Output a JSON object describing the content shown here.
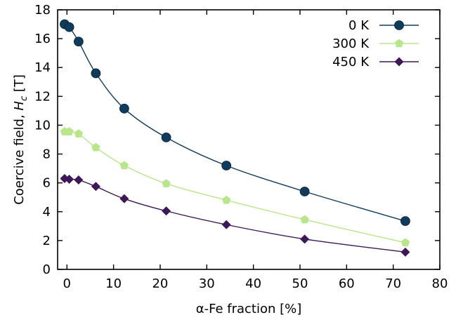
{
  "chart_data": {
    "type": "line",
    "title": "",
    "xlabel": "α-Fe fraction [%]",
    "ylabel_main": "Coercive field, ",
    "ylabel_symbol": "H",
    "ylabel_sub": "c",
    "ylabel_unit": " [T]",
    "xlim": [
      -2,
      80
    ],
    "ylim": [
      0,
      18
    ],
    "xticks": [
      0,
      10,
      20,
      30,
      40,
      50,
      60,
      70,
      80
    ],
    "yticks": [
      0,
      2,
      4,
      6,
      8,
      10,
      12,
      14,
      16,
      18
    ],
    "grid": false,
    "legend_position": "top-right",
    "x": [
      -0.5,
      0.5,
      2.5,
      6.2,
      12.3,
      21.3,
      34.2,
      51.0,
      72.6
    ],
    "series": [
      {
        "name": "0 K",
        "color": "#0f3c5c",
        "marker": "circle",
        "values": [
          17.0,
          16.8,
          15.8,
          13.6,
          11.15,
          9.15,
          7.2,
          5.4,
          3.35
        ]
      },
      {
        "name": "300 K",
        "color": "#b8e68a",
        "marker": "pentagon",
        "values": [
          9.55,
          9.55,
          9.4,
          8.45,
          7.2,
          5.95,
          4.8,
          3.45,
          1.85
        ]
      },
      {
        "name": "450 K",
        "color": "#3d1858",
        "marker": "diamond",
        "values": [
          6.3,
          6.25,
          6.2,
          5.75,
          4.9,
          4.05,
          3.1,
          2.1,
          1.2
        ]
      }
    ]
  }
}
